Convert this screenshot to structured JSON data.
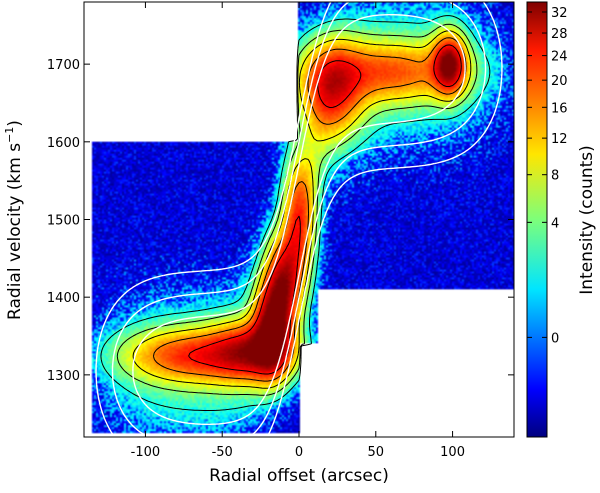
{
  "chart_data": {
    "type": "heatmap",
    "title": "",
    "xlabel": "Radial offset (arcsec)",
    "ylabel_main": "Radial velocity (km s",
    "ylabel_sup": "−1",
    "ylabel_close": ")",
    "xlim": [
      -140,
      140
    ],
    "ylim": [
      1220,
      1780
    ],
    "x_ticks": [
      {
        "value": -100,
        "label": "-100"
      },
      {
        "value": -50,
        "label": "-50"
      },
      {
        "value": 0,
        "label": "0"
      },
      {
        "value": 50,
        "label": "50"
      },
      {
        "value": 100,
        "label": "100"
      }
    ],
    "y_ticks": [
      {
        "value": 1300,
        "label": "1300"
      },
      {
        "value": 1400,
        "label": "1400"
      },
      {
        "value": 1500,
        "label": "1500"
      },
      {
        "value": 1600,
        "label": "1600"
      },
      {
        "value": 1700,
        "label": "1700"
      }
    ],
    "colorbar": {
      "label": "Intensity (counts)",
      "min": -3,
      "max": 34,
      "scale": "sqrt",
      "ticks": [
        {
          "value": 0,
          "label": "0"
        },
        {
          "value": 4,
          "label": "4"
        },
        {
          "value": 8,
          "label": "8"
        },
        {
          "value": 12,
          "label": "12"
        },
        {
          "value": 16,
          "label": "16"
        },
        {
          "value": 20,
          "label": "20"
        },
        {
          "value": 24,
          "label": "24"
        },
        {
          "value": 28,
          "label": "28"
        },
        {
          "value": 32,
          "label": "32"
        }
      ],
      "colormap": "jet"
    },
    "coverage_regions": [
      {
        "x": [
          -135,
          0
        ],
        "y": [
          1225,
          1600
        ]
      },
      {
        "x": [
          0,
          12
        ],
        "y": [
          1340,
          1720
        ]
      },
      {
        "x": [
          12,
          140
        ],
        "y": [
          1410,
          1780
        ]
      },
      {
        "x": [
          0,
          12
        ],
        "y": [
          1720,
          1780
        ]
      }
    ],
    "emission_components": [
      {
        "name": "approaching-lobe",
        "x": -70,
        "y": 1325,
        "sx": 28,
        "sy": 22,
        "amp": 18
      },
      {
        "name": "inner-approaching",
        "x": -30,
        "y": 1330,
        "sx": 18,
        "sy": 25,
        "amp": 22
      },
      {
        "name": "inner-core-low",
        "x": -17,
        "y": 1360,
        "sx": 8,
        "sy": 40,
        "amp": 30
      },
      {
        "name": "inner-core-mid",
        "x": -10,
        "y": 1420,
        "sx": 8,
        "sy": 40,
        "amp": 22
      },
      {
        "name": "center",
        "x": 0,
        "y": 1500,
        "sx": 7,
        "sy": 55,
        "amp": 18
      },
      {
        "name": "inner-receding",
        "x": 20,
        "y": 1670,
        "sx": 14,
        "sy": 40,
        "amp": 22
      },
      {
        "name": "receding-lobe",
        "x": 60,
        "y": 1690,
        "sx": 30,
        "sy": 25,
        "amp": 15
      },
      {
        "name": "receding-peak",
        "x": 98,
        "y": 1700,
        "sx": 7,
        "sy": 25,
        "amp": 30
      }
    ]
  }
}
